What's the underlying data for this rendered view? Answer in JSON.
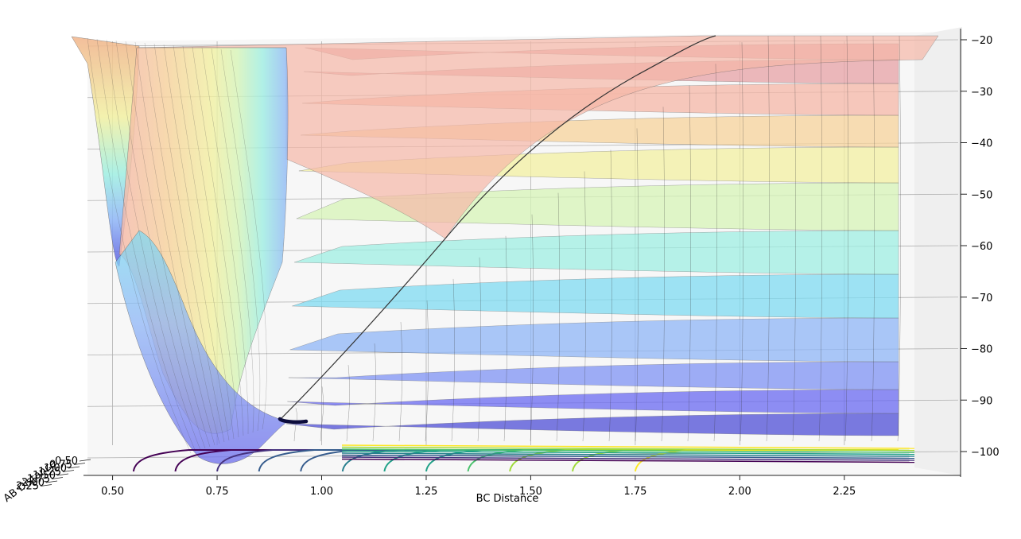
{
  "chart_data": {
    "type": "surface3d",
    "title": "",
    "xlabel": "BC Distance",
    "ylabel": "AB Distance",
    "zlabel": "",
    "x_ticks": [
      "0.50",
      "0.75",
      "1.00",
      "1.25",
      "1.50",
      "1.75",
      "2.00",
      "2.25"
    ],
    "y_ticks": [
      "0.50",
      "0.75",
      "1.00",
      "1.25",
      "1.50",
      "1.75",
      "2.00",
      "2.25"
    ],
    "z_ticks": [
      "−20",
      "−30",
      "−40",
      "−50",
      "−60",
      "−70",
      "−80",
      "−90",
      "−100"
    ],
    "xlim": [
      0.4,
      2.45
    ],
    "zlim": [
      -104,
      -18
    ],
    "surface_colormap": "jet",
    "contour_colormap": "viridis",
    "grid": true,
    "colors": {
      "pane": "#f2f2f2",
      "grid": "#b0b0b0",
      "trajectory": "#0b0b3b"
    },
    "band_colors": [
      "#4f4fd8",
      "#6a6af2",
      "#7f93f5",
      "#8fb6f7",
      "#7fdcf2",
      "#9fefe3",
      "#d7f5b8",
      "#f3f1a2",
      "#f7d49c",
      "#f6b8a8",
      "#e8a2a6"
    ],
    "contour_levels_bc": [
      0.55,
      0.65,
      0.75,
      0.85,
      0.95,
      1.05,
      1.15,
      1.25,
      1.35,
      1.45,
      1.6,
      1.75
    ]
  }
}
